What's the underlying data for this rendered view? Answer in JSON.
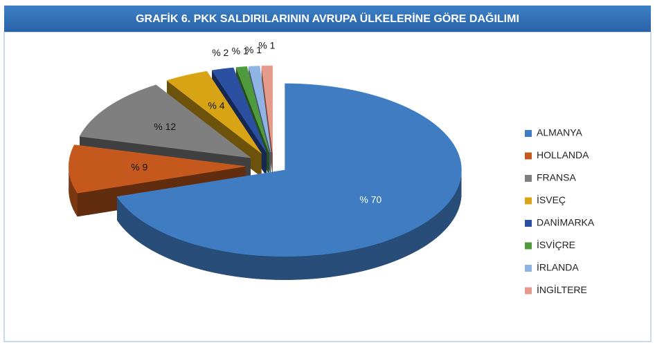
{
  "chart_data": {
    "type": "pie",
    "title": "GRAFİK 6. PKK SALDIRILARININ AVRUPA ÜLKELERİNE GÖRE DAĞILIMI",
    "categories": [
      "ALMANYA",
      "HOLLANDA",
      "FRANSA",
      "İSVEÇ",
      "DANİMARKA",
      "İSVİÇRE",
      "İRLANDA",
      "İNGİLTERE"
    ],
    "values": [
      70,
      9,
      12,
      4,
      2,
      1,
      1,
      1
    ],
    "value_labels": [
      "% 70",
      "% 9",
      "% 12",
      "% 4",
      "% 2",
      "% 1",
      "% 1",
      "% 1"
    ],
    "colors": [
      "#3f7cc2",
      "#c4581d",
      "#7f7f7f",
      "#d8a416",
      "#2b50a2",
      "#4f9a3d",
      "#8fb4e3",
      "#e59a8b"
    ],
    "legend": "right"
  }
}
